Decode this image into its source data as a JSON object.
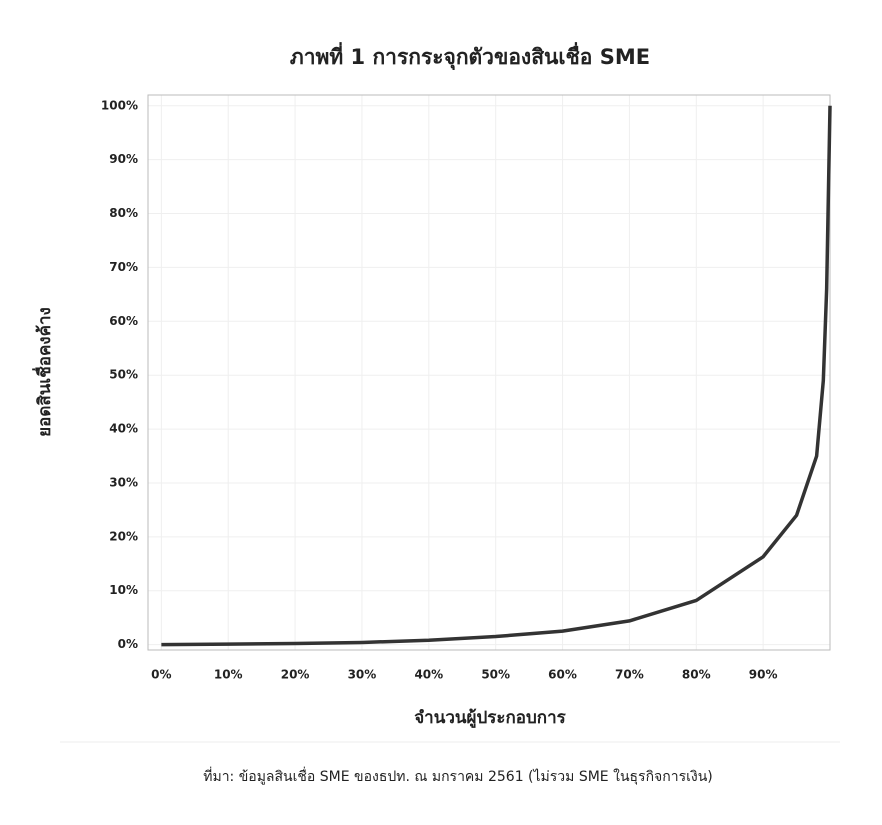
{
  "chart_data": {
    "type": "line",
    "title": "ภาพที่ 1 การกระจุกตัวของสินเชื่อ SME",
    "y_label": "ยอดสินเชื่อคงค้าง",
    "x_label": "จำนวนผู้ประกอบการ",
    "source": "ที่มา: ข้อมูลสินเชื่อ SME ของธปท. ณ มกราคม 2561 (ไม่รวม SME ในธุรกิจการเงิน)",
    "x": [
      0,
      10,
      20,
      30,
      40,
      50,
      60,
      70,
      80,
      90,
      95,
      98,
      99,
      99.5,
      100
    ],
    "series": [
      {
        "color": "#333333",
        "values": [
          0,
          0.1,
          0.2,
          0.4,
          0.8,
          1.5,
          2.5,
          4.4,
          8.2,
          16.3,
          24,
          35,
          49,
          66,
          100
        ]
      }
    ],
    "xlim": [
      -2,
      100
    ],
    "ylim": [
      -1,
      102
    ],
    "xticks": [
      {
        "value": 0,
        "label": "0%"
      },
      {
        "value": 10,
        "label": "10%"
      },
      {
        "value": 20,
        "label": "20%"
      },
      {
        "value": 30,
        "label": "30%"
      },
      {
        "value": 40,
        "label": "40%"
      },
      {
        "value": 50,
        "label": "50%"
      },
      {
        "value": 60,
        "label": "60%"
      },
      {
        "value": 70,
        "label": "70%"
      },
      {
        "value": 80,
        "label": "80%"
      },
      {
        "value": 90,
        "label": "90%"
      }
    ],
    "yticks": [
      {
        "value": 0,
        "label": "0%"
      },
      {
        "value": 10,
        "label": "10%"
      },
      {
        "value": 20,
        "label": "20%"
      },
      {
        "value": 30,
        "label": "30%"
      },
      {
        "value": 40,
        "label": "40%"
      },
      {
        "value": 50,
        "label": "50%"
      },
      {
        "value": 60,
        "label": "60%"
      },
      {
        "value": 70,
        "label": "70%"
      },
      {
        "value": 80,
        "label": "80%"
      },
      {
        "value": 90,
        "label": "90%"
      },
      {
        "value": 100,
        "label": "100%"
      }
    ],
    "grid": true
  }
}
